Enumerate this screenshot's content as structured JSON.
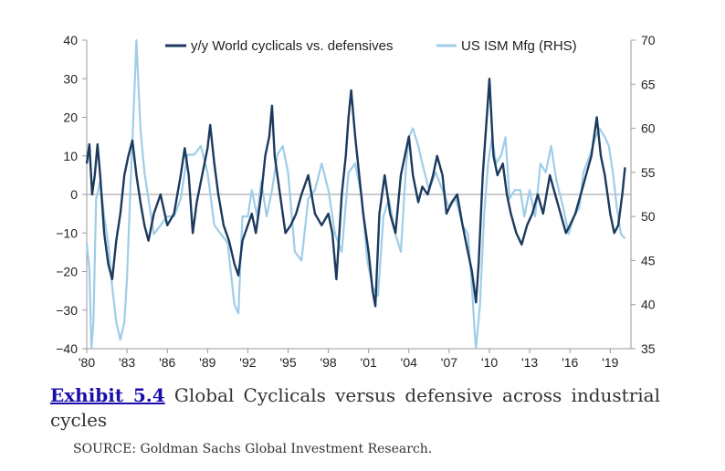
{
  "chart_data": {
    "type": "line",
    "title": "",
    "x_ticks": [
      "'80",
      "'83",
      "'86",
      "'89",
      "'92",
      "'95",
      "'98",
      "'01",
      "'04",
      "'07",
      "'10",
      "'13",
      "'16",
      "'19"
    ],
    "x_range": [
      1980,
      2020.2
    ],
    "y_left": {
      "range": [
        -40,
        40
      ],
      "ticks": [
        40,
        30,
        20,
        10,
        0,
        -10,
        -20,
        -30,
        -40
      ],
      "tick_labels": [
        "40",
        "30",
        "20",
        "10",
        "0",
        "−10",
        "−20",
        "−30",
        "−40"
      ]
    },
    "y_right": {
      "range": [
        35,
        70
      ],
      "ticks": [
        70,
        65,
        60,
        55,
        50,
        45,
        40,
        35
      ],
      "tick_labels": [
        "70",
        "65",
        "60",
        "55",
        "50",
        "45",
        "40",
        "35"
      ]
    },
    "zero_line": true,
    "legend_position": "top-center",
    "series": [
      {
        "name": "y/y World cyclicals vs. defensives",
        "axis": "left",
        "color": "#1b3a5e",
        "points": [
          [
            1980.0,
            8
          ],
          [
            1980.2,
            13
          ],
          [
            1980.4,
            0
          ],
          [
            1980.6,
            5
          ],
          [
            1980.8,
            13
          ],
          [
            1981.0,
            5
          ],
          [
            1981.3,
            -10
          ],
          [
            1981.6,
            -18
          ],
          [
            1981.9,
            -22
          ],
          [
            1982.2,
            -12
          ],
          [
            1982.5,
            -5
          ],
          [
            1982.8,
            5
          ],
          [
            1983.1,
            10
          ],
          [
            1983.4,
            14
          ],
          [
            1983.7,
            5
          ],
          [
            1984.0,
            -2
          ],
          [
            1984.3,
            -8
          ],
          [
            1984.6,
            -12
          ],
          [
            1985.0,
            -5
          ],
          [
            1985.5,
            0
          ],
          [
            1986.0,
            -8
          ],
          [
            1986.5,
            -5
          ],
          [
            1987.0,
            5
          ],
          [
            1987.3,
            12
          ],
          [
            1987.6,
            5
          ],
          [
            1987.9,
            -10
          ],
          [
            1988.2,
            -2
          ],
          [
            1988.6,
            5
          ],
          [
            1989.0,
            12
          ],
          [
            1989.2,
            18
          ],
          [
            1989.5,
            8
          ],
          [
            1989.8,
            0
          ],
          [
            1990.2,
            -8
          ],
          [
            1990.6,
            -12
          ],
          [
            1991.0,
            -18
          ],
          [
            1991.3,
            -21
          ],
          [
            1991.6,
            -12
          ],
          [
            1992.0,
            -8
          ],
          [
            1992.3,
            -5
          ],
          [
            1992.6,
            -10
          ],
          [
            1993.0,
            0
          ],
          [
            1993.3,
            10
          ],
          [
            1993.6,
            15
          ],
          [
            1993.8,
            23
          ],
          [
            1994.0,
            10
          ],
          [
            1994.4,
            0
          ],
          [
            1994.8,
            -10
          ],
          [
            1995.2,
            -8
          ],
          [
            1995.6,
            -5
          ],
          [
            1996.0,
            0
          ],
          [
            1996.5,
            5
          ],
          [
            1997.0,
            -5
          ],
          [
            1997.5,
            -8
          ],
          [
            1998.0,
            -5
          ],
          [
            1998.3,
            -10
          ],
          [
            1998.6,
            -22
          ],
          [
            1999.0,
            0
          ],
          [
            1999.3,
            10
          ],
          [
            1999.5,
            20
          ],
          [
            1999.7,
            27
          ],
          [
            2000.0,
            15
          ],
          [
            2000.3,
            5
          ],
          [
            2000.6,
            -5
          ],
          [
            2001.0,
            -15
          ],
          [
            2001.3,
            -25
          ],
          [
            2001.5,
            -29
          ],
          [
            2001.8,
            -5
          ],
          [
            2002.2,
            5
          ],
          [
            2002.6,
            -5
          ],
          [
            2003.0,
            -10
          ],
          [
            2003.4,
            5
          ],
          [
            2003.7,
            10
          ],
          [
            2004.0,
            15
          ],
          [
            2004.3,
            5
          ],
          [
            2004.7,
            -2
          ],
          [
            2005.0,
            2
          ],
          [
            2005.4,
            0
          ],
          [
            2005.8,
            5
          ],
          [
            2006.1,
            10
          ],
          [
            2006.5,
            5
          ],
          [
            2006.8,
            -5
          ],
          [
            2007.2,
            -2
          ],
          [
            2007.6,
            0
          ],
          [
            2008.0,
            -8
          ],
          [
            2008.4,
            -15
          ],
          [
            2008.7,
            -20
          ],
          [
            2009.0,
            -28
          ],
          [
            2009.2,
            -18
          ],
          [
            2009.5,
            5
          ],
          [
            2009.8,
            20
          ],
          [
            2010.0,
            30
          ],
          [
            2010.3,
            10
          ],
          [
            2010.6,
            5
          ],
          [
            2011.0,
            8
          ],
          [
            2011.3,
            0
          ],
          [
            2011.6,
            -5
          ],
          [
            2012.0,
            -10
          ],
          [
            2012.4,
            -13
          ],
          [
            2012.8,
            -8
          ],
          [
            2013.2,
            -5
          ],
          [
            2013.6,
            0
          ],
          [
            2014.0,
            -5
          ],
          [
            2014.5,
            5
          ],
          [
            2014.9,
            0
          ],
          [
            2015.3,
            -5
          ],
          [
            2015.7,
            -10
          ],
          [
            2016.0,
            -8
          ],
          [
            2016.4,
            -5
          ],
          [
            2016.8,
            0
          ],
          [
            2017.2,
            5
          ],
          [
            2017.6,
            10
          ],
          [
            2018.0,
            20
          ],
          [
            2018.3,
            10
          ],
          [
            2018.6,
            5
          ],
          [
            2019.0,
            -5
          ],
          [
            2019.3,
            -10
          ],
          [
            2019.6,
            -8
          ],
          [
            2019.9,
            0
          ],
          [
            2020.1,
            7
          ]
        ]
      },
      {
        "name": "US ISM Mfg (RHS)",
        "axis": "right",
        "color": "#9fcde8",
        "points": [
          [
            1980.0,
            47
          ],
          [
            1980.2,
            44
          ],
          [
            1980.35,
            35
          ],
          [
            1980.5,
            38
          ],
          [
            1980.7,
            52
          ],
          [
            1981.0,
            54
          ],
          [
            1981.3,
            50
          ],
          [
            1981.6,
            47
          ],
          [
            1981.9,
            42
          ],
          [
            1982.2,
            38
          ],
          [
            1982.5,
            36
          ],
          [
            1982.8,
            38
          ],
          [
            1983.0,
            43
          ],
          [
            1983.3,
            55
          ],
          [
            1983.5,
            62
          ],
          [
            1983.7,
            70
          ],
          [
            1984.0,
            60
          ],
          [
            1984.3,
            55
          ],
          [
            1984.6,
            52
          ],
          [
            1985.0,
            48
          ],
          [
            1985.5,
            49
          ],
          [
            1986.0,
            50
          ],
          [
            1986.5,
            50
          ],
          [
            1987.0,
            52
          ],
          [
            1987.5,
            57
          ],
          [
            1988.0,
            57
          ],
          [
            1988.5,
            58
          ],
          [
            1989.0,
            55
          ],
          [
            1989.5,
            49
          ],
          [
            1990.0,
            48
          ],
          [
            1990.5,
            47
          ],
          [
            1991.0,
            40
          ],
          [
            1991.3,
            39
          ],
          [
            1991.6,
            50
          ],
          [
            1992.0,
            50
          ],
          [
            1992.3,
            53
          ],
          [
            1992.7,
            50
          ],
          [
            1993.0,
            54
          ],
          [
            1993.4,
            50
          ],
          [
            1993.8,
            53
          ],
          [
            1994.2,
            57
          ],
          [
            1994.6,
            58
          ],
          [
            1995.0,
            55
          ],
          [
            1995.5,
            46
          ],
          [
            1996.0,
            45
          ],
          [
            1996.5,
            52
          ],
          [
            1997.0,
            53
          ],
          [
            1997.5,
            56
          ],
          [
            1998.0,
            53
          ],
          [
            1998.5,
            48
          ],
          [
            1999.0,
            46
          ],
          [
            1999.5,
            55
          ],
          [
            2000.0,
            56
          ],
          [
            2000.5,
            52
          ],
          [
            2000.9,
            45
          ],
          [
            2001.3,
            42
          ],
          [
            2001.7,
            41
          ],
          [
            2002.1,
            50
          ],
          [
            2002.5,
            52
          ],
          [
            2003.0,
            48
          ],
          [
            2003.4,
            46
          ],
          [
            2003.8,
            56
          ],
          [
            2004.0,
            59
          ],
          [
            2004.3,
            60
          ],
          [
            2004.7,
            58
          ],
          [
            2005.0,
            56
          ],
          [
            2005.5,
            53
          ],
          [
            2006.0,
            55
          ],
          [
            2006.5,
            53
          ],
          [
            2007.0,
            51
          ],
          [
            2007.5,
            52
          ],
          [
            2008.0,
            49
          ],
          [
            2008.4,
            48
          ],
          [
            2008.7,
            42
          ],
          [
            2008.9,
            37
          ],
          [
            2009.0,
            35
          ],
          [
            2009.3,
            40
          ],
          [
            2009.6,
            50
          ],
          [
            2009.9,
            56
          ],
          [
            2010.2,
            59
          ],
          [
            2010.5,
            56
          ],
          [
            2010.9,
            57
          ],
          [
            2011.2,
            59
          ],
          [
            2011.5,
            52
          ],
          [
            2011.9,
            53
          ],
          [
            2012.3,
            53
          ],
          [
            2012.6,
            50
          ],
          [
            2013.0,
            53
          ],
          [
            2013.4,
            50
          ],
          [
            2013.8,
            56
          ],
          [
            2014.2,
            55
          ],
          [
            2014.6,
            58
          ],
          [
            2015.0,
            54
          ],
          [
            2015.5,
            51
          ],
          [
            2015.9,
            48
          ],
          [
            2016.3,
            50
          ],
          [
            2016.7,
            51
          ],
          [
            2017.0,
            55
          ],
          [
            2017.5,
            57
          ],
          [
            2017.9,
            59
          ],
          [
            2018.2,
            60
          ],
          [
            2018.6,
            59
          ],
          [
            2018.9,
            58
          ],
          [
            2019.2,
            55
          ],
          [
            2019.5,
            51
          ],
          [
            2019.8,
            48
          ],
          [
            2020.1,
            47.5
          ]
        ]
      }
    ]
  },
  "caption": {
    "exhibit_link": "Exhibit 5.4",
    "text": " Global Cyclicals versus defensive across industrial cycles"
  },
  "source": "SOURCE: Goldman Sachs Global Investment Research."
}
